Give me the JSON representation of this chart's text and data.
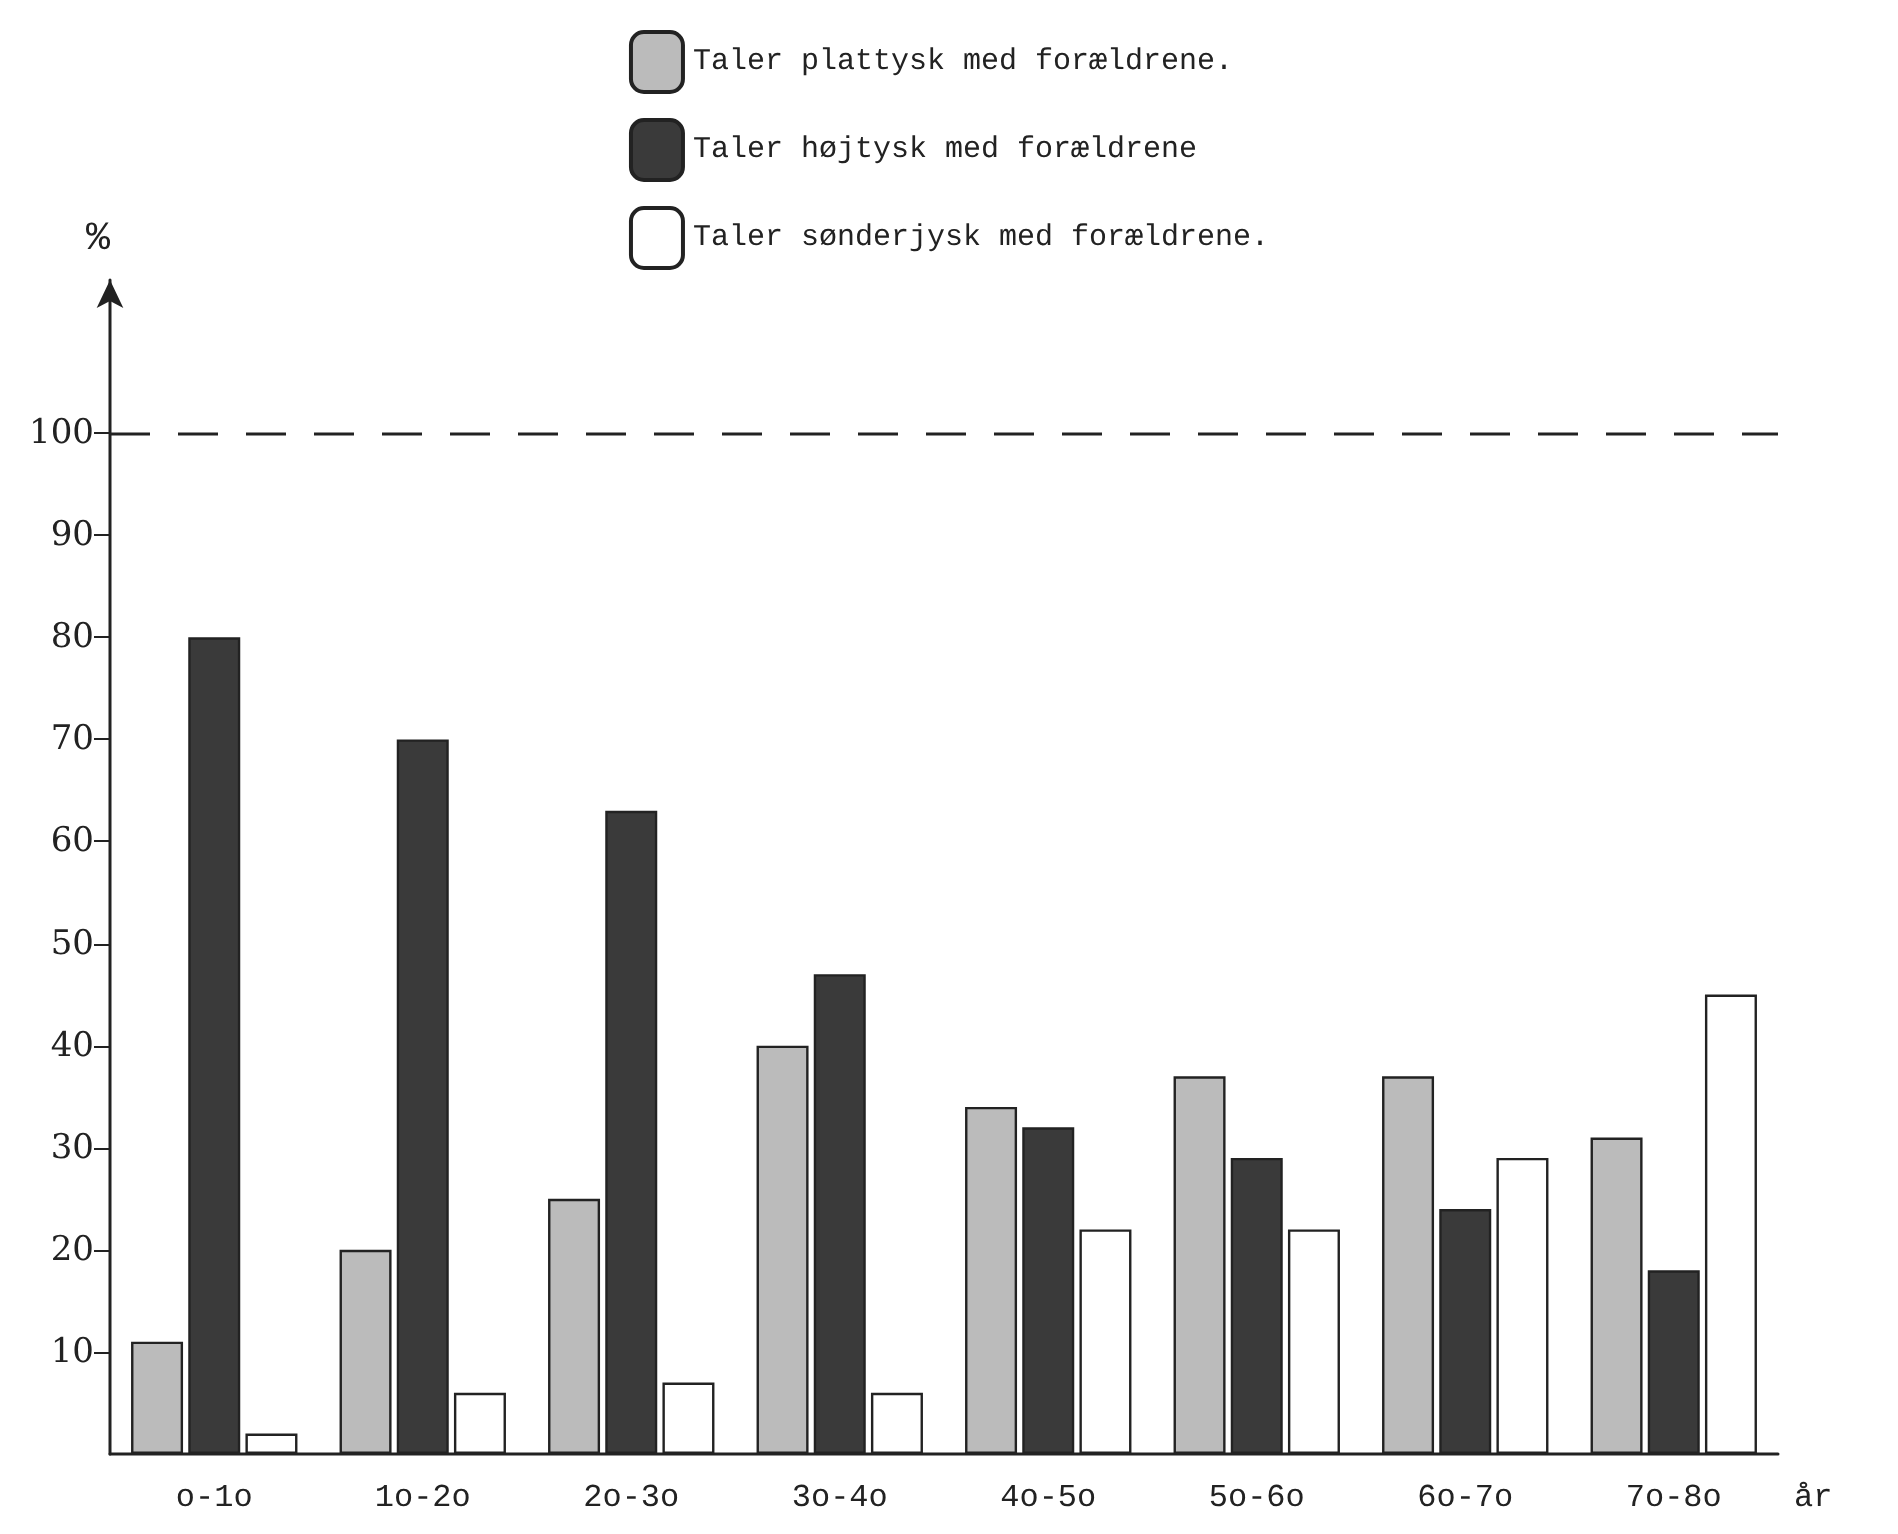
{
  "chart_data": {
    "type": "bar",
    "ylabel": "%",
    "xlabel": "år",
    "categories": [
      "o-1o",
      "1o-2o",
      "2o-3o",
      "3o-4o",
      "4o-5o",
      "5o-6o",
      "6o-7o",
      "7o-8o"
    ],
    "series": [
      {
        "name": "Taler plattysk med forældrene.",
        "color": "#bbbbbb",
        "values": [
          11,
          20,
          25,
          40,
          34,
          37,
          37,
          31
        ]
      },
      {
        "name": "Taler højtysk med forældrene",
        "color": "#3a3a3a",
        "values": [
          80,
          70,
          63,
          47,
          32,
          29,
          24,
          18
        ]
      },
      {
        "name": "Taler sønderjysk med forældrene.",
        "color": "#ffffff",
        "values": [
          2,
          6,
          7,
          6,
          22,
          22,
          29,
          45
        ]
      }
    ],
    "ylim": [
      0,
      115
    ],
    "yticks": [
      10,
      20,
      30,
      40,
      50,
      60,
      70,
      80,
      90,
      100
    ],
    "ref_lines": [
      {
        "axis": "y",
        "value": 100,
        "line_style": "dashed",
        "color": "#222222"
      }
    ],
    "grid": false,
    "legend": "top"
  }
}
